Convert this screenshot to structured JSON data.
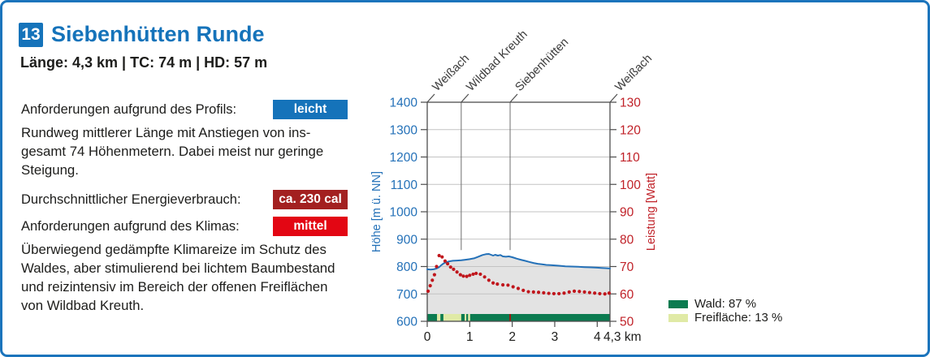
{
  "card": {
    "number": "13",
    "title": "Siebenhütten Runde",
    "stats_line": "Länge: 4,3 km | TC: 74 m | HD: 57 m",
    "rows": {
      "profile_label": "Anforderungen aufgrund des Profils:",
      "profile_badge": "leicht",
      "energy_label": "Durchschnittlicher Energieverbrauch:",
      "energy_badge": "ca. 230 cal",
      "climate_label": "Anforderungen aufgrund des Klimas:",
      "climate_badge": "mittel"
    },
    "paragraph_profile": "Rundweg mittlerer Länge mit Anstiegen von ins-\ngesamt 74 Höhenmetern. Dabei meist nur geringe\nSteigung.",
    "paragraph_climate": "Überwiegend gedämpfte Klimareize im Schutz des\nWaldes, aber stimulierend bei lichtem Baumbestand\nund reizintensiv im Bereich der offenen Freiflächen\nvon Wildbad Kreuth."
  },
  "colors": {
    "brand_blue": "#1573ba",
    "badge_dark_red": "#a32020",
    "badge_red": "#e30613",
    "card_border_blue": "#1b74bc",
    "text_black": "#1d1d1b",
    "elevation_blue": "#2471b8",
    "power_red": "#c0161c",
    "wald_green": "#0b7b50",
    "freiflaeche_green": "#e0eaa6",
    "profile_fill_gray": "#e3e3e3"
  },
  "chart_data": {
    "type": "line",
    "x": {
      "unit": "km",
      "range": [
        0,
        4.3
      ],
      "ticks": [
        0,
        1,
        2,
        3,
        4
      ],
      "end_label": "4,3 km"
    },
    "y_left": {
      "label": "Höhe [m ü. NN]",
      "range": [
        600,
        1400
      ],
      "tick_step": 100,
      "color": "#2471b8"
    },
    "y_right": {
      "label": "Leistung [Watt]",
      "range": [
        50,
        130
      ],
      "tick_step": 10,
      "color": "#c02128"
    },
    "waypoints": [
      {
        "label": "Weißach",
        "km": 0
      },
      {
        "label": "Wildbad Kreuth",
        "km": 0.8
      },
      {
        "label": "Siebenhütten",
        "km": 1.95
      },
      {
        "label": "Weißach",
        "km": 4.3
      }
    ],
    "waypoint_line_bottom_elevation": 860,
    "series": [
      {
        "name": "Höhe",
        "style": "line",
        "axis": "left",
        "color": "#2471b8",
        "fill": "#e3e3e3",
        "points": [
          [
            0,
            790
          ],
          [
            0.08,
            789
          ],
          [
            0.15,
            790
          ],
          [
            0.22,
            793
          ],
          [
            0.28,
            798
          ],
          [
            0.33,
            805
          ],
          [
            0.38,
            811
          ],
          [
            0.45,
            816
          ],
          [
            0.52,
            819
          ],
          [
            0.6,
            821
          ],
          [
            0.7,
            822
          ],
          [
            0.8,
            823
          ],
          [
            0.9,
            825
          ],
          [
            1.0,
            827
          ],
          [
            1.1,
            830
          ],
          [
            1.2,
            836
          ],
          [
            1.3,
            842
          ],
          [
            1.38,
            845
          ],
          [
            1.45,
            846
          ],
          [
            1.5,
            843
          ],
          [
            1.55,
            840
          ],
          [
            1.6,
            843
          ],
          [
            1.66,
            840
          ],
          [
            1.72,
            842
          ],
          [
            1.78,
            837
          ],
          [
            1.85,
            836
          ],
          [
            1.92,
            837
          ],
          [
            2.0,
            834
          ],
          [
            2.1,
            829
          ],
          [
            2.2,
            825
          ],
          [
            2.3,
            821
          ],
          [
            2.4,
            817
          ],
          [
            2.5,
            813
          ],
          [
            2.6,
            810
          ],
          [
            2.7,
            808
          ],
          [
            2.8,
            806
          ],
          [
            2.9,
            805
          ],
          [
            3.0,
            804
          ],
          [
            3.1,
            803
          ],
          [
            3.25,
            801
          ],
          [
            3.4,
            800
          ],
          [
            3.55,
            799
          ],
          [
            3.7,
            798
          ],
          [
            3.85,
            797
          ],
          [
            4.0,
            796
          ],
          [
            4.1,
            795
          ],
          [
            4.2,
            794
          ],
          [
            4.3,
            793
          ]
        ]
      },
      {
        "name": "Leistung",
        "style": "dots",
        "axis": "right",
        "color": "#c0161c",
        "points": [
          [
            0.02,
            61
          ],
          [
            0.07,
            63
          ],
          [
            0.12,
            65
          ],
          [
            0.17,
            67
          ],
          [
            0.22,
            70
          ],
          [
            0.28,
            74
          ],
          [
            0.35,
            73.5
          ],
          [
            0.42,
            72
          ],
          [
            0.48,
            71
          ],
          [
            0.55,
            69.8
          ],
          [
            0.62,
            69
          ],
          [
            0.7,
            68
          ],
          [
            0.78,
            67
          ],
          [
            0.85,
            66.5
          ],
          [
            0.93,
            66.4
          ],
          [
            1.0,
            66.8
          ],
          [
            1.08,
            67.2
          ],
          [
            1.15,
            67.5
          ],
          [
            1.25,
            67.2
          ],
          [
            1.35,
            66.2
          ],
          [
            1.45,
            65
          ],
          [
            1.55,
            64
          ],
          [
            1.65,
            63.6
          ],
          [
            1.78,
            63.3
          ],
          [
            1.9,
            63.2
          ],
          [
            2.02,
            62.6
          ],
          [
            2.14,
            62
          ],
          [
            2.26,
            61.3
          ],
          [
            2.38,
            60.8
          ],
          [
            2.5,
            60.7
          ],
          [
            2.62,
            60.6
          ],
          [
            2.74,
            60.4
          ],
          [
            2.86,
            60.2
          ],
          [
            2.98,
            60.1
          ],
          [
            3.1,
            60.1
          ],
          [
            3.22,
            60.3
          ],
          [
            3.34,
            60.7
          ],
          [
            3.46,
            61
          ],
          [
            3.58,
            60.9
          ],
          [
            3.7,
            60.7
          ],
          [
            3.82,
            60.5
          ],
          [
            3.94,
            60.3
          ],
          [
            4.06,
            60.1
          ],
          [
            4.18,
            60
          ],
          [
            4.28,
            60.3
          ]
        ]
      }
    ],
    "ground_cover_band": {
      "wald_color": "#0b7b50",
      "freiflaeche_color": "#e0eaa6",
      "freiflaeche_segments_km": [
        [
          0.23,
          0.31
        ],
        [
          0.38,
          0.8
        ],
        [
          0.88,
          0.92
        ],
        [
          0.96,
          1.01
        ]
      ],
      "marker_km": 1.95,
      "marker_color": "#9b1b10"
    },
    "legend": [
      {
        "label": "Wald: 87 %",
        "color": "#0b7b50"
      },
      {
        "label": "Freifläche: 13 %",
        "color": "#e0eaa6"
      }
    ]
  }
}
